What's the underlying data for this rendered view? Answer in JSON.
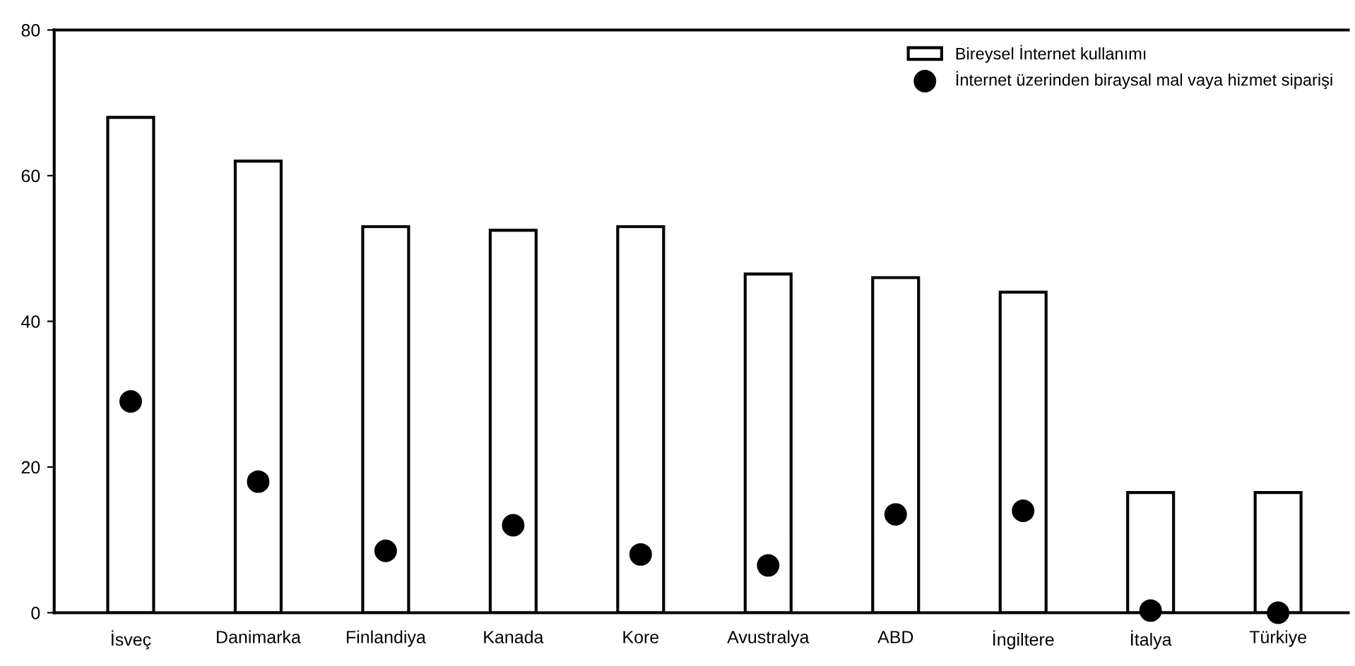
{
  "chart_data": {
    "type": "bar",
    "categories": [
      "İsveç",
      "Danimarka",
      "Finlandiya",
      "Kanada",
      "Kore",
      "Avustralya",
      "ABD",
      "İngiltere",
      "İtalya",
      "Türkiye"
    ],
    "series": [
      {
        "name": "Bireysel İnternet kullanımı",
        "color": "#ffffff",
        "values": [
          68,
          62,
          53,
          52.5,
          53,
          46.5,
          46,
          44,
          16.5,
          16.5
        ]
      },
      {
        "name": "İnternet üzerinden biraysal mal vaya hizmet siparişi",
        "type": "scatter",
        "color": "#000000",
        "values": [
          29,
          18,
          8.5,
          12,
          8,
          6.5,
          13.5,
          14,
          0.3,
          0
        ]
      }
    ],
    "ylim": [
      0,
      80
    ],
    "yticks": [
      0,
      20,
      40,
      60,
      80
    ],
    "grid": false,
    "legend": "top right",
    "marker": "circle"
  }
}
